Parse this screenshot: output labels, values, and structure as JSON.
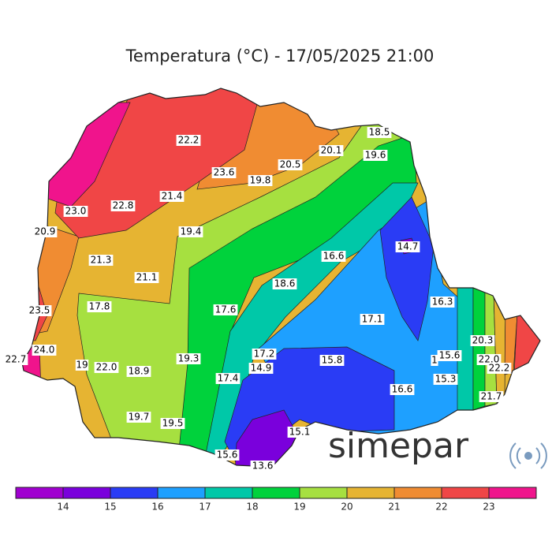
{
  "title": "Temperatura (°C) - 17/05/2025 21:00",
  "map": {
    "labels": [
      "18.5",
      "20.1",
      "19.6",
      "22.2",
      "23.6",
      "20.5",
      "19.8",
      "21.4",
      "23.0",
      "22.8",
      "20.9",
      "19.4",
      "14.7",
      "16.6",
      "21.3",
      "21.1",
      "18.6",
      "17.8",
      "17.6",
      "23.5",
      "16.3",
      "17.1",
      "20.3",
      "24.0",
      "17.2",
      "15.6",
      "1",
      "22.7",
      "19.3",
      "15.8",
      "22.0",
      "19",
      "22.0",
      "18.9",
      "14.9",
      "22.2",
      "15.3",
      "17.4",
      "16.6",
      "21.7",
      "19.7",
      "19.5",
      "15.1",
      "15.6",
      "13.6"
    ]
  },
  "colorbar": {
    "colors": [
      "#a000d0",
      "#7a00dc",
      "#2a3cf5",
      "#1ea0ff",
      "#00c8a8",
      "#00d23c",
      "#a6e040",
      "#e6b432",
      "#f08c32",
      "#f04646",
      "#f0148c"
    ],
    "ticks": [
      14,
      15,
      16,
      17,
      18,
      19,
      20,
      21,
      22,
      23
    ]
  },
  "logo": "simepar"
}
